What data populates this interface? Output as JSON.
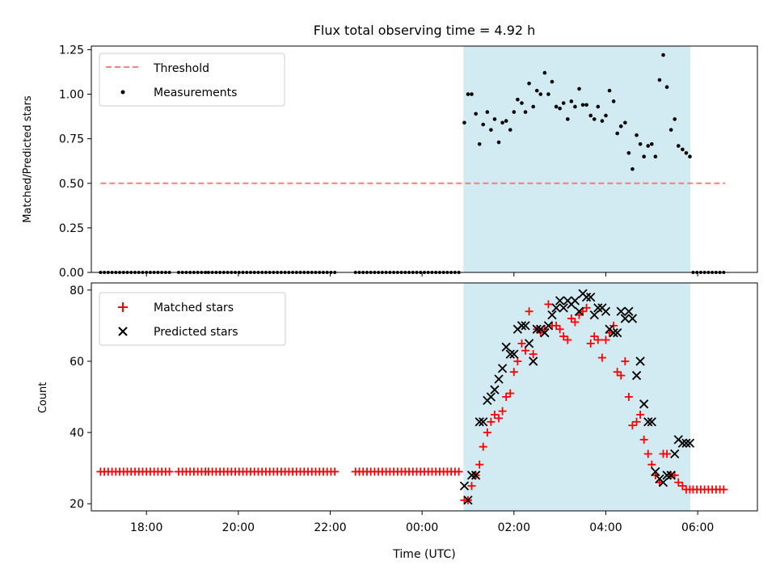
{
  "chart_data": {
    "title": "Flux total observing time = 4.92 h",
    "xlabel": "Time (UTC)",
    "xticks": [
      "18:00",
      "20:00",
      "22:00",
      "00:00",
      "02:00",
      "04:00",
      "06:00"
    ],
    "xlim": [
      16.8,
      31.3
    ],
    "highlight": {
      "x_start": 24.9,
      "x_end": 29.84,
      "color": "#add8e6"
    },
    "panels": [
      {
        "type": "scatter",
        "ylabel": "Matched/Predicted stars",
        "ylim": [
          0,
          1.27
        ],
        "yticks": [
          "0.00",
          "0.25",
          "0.50",
          "0.75",
          "1.00",
          "1.25"
        ],
        "legend": {
          "position": "top-left",
          "entries": [
            {
              "label": "Threshold",
              "style": "dashed-line",
              "color": "#ff8080"
            },
            {
              "label": "Measurements",
              "style": "dot",
              "color": "#000000"
            }
          ]
        },
        "threshold": {
          "value": 0.5,
          "x": [
            17.0,
            30.6
          ],
          "color": "#ff6666"
        },
        "zeros": [
          [
            17.0,
            18.5
          ],
          [
            18.7,
            19.3
          ],
          [
            19.35,
            22.1
          ],
          [
            22.55,
            24.87
          ],
          [
            29.9,
            30.6
          ]
        ],
        "measurements": {
          "x": [
            24.92,
            25.0,
            25.08,
            25.17,
            25.25,
            25.33,
            25.42,
            25.5,
            25.58,
            25.67,
            25.75,
            25.83,
            25.92,
            26.0,
            26.08,
            26.17,
            26.25,
            26.33,
            26.42,
            26.5,
            26.58,
            26.67,
            26.75,
            26.83,
            26.92,
            27.0,
            27.08,
            27.17,
            27.25,
            27.33,
            27.42,
            27.5,
            27.58,
            27.67,
            27.75,
            27.83,
            27.92,
            28.0,
            28.08,
            28.17,
            28.25,
            28.33,
            28.42,
            28.5,
            28.58,
            28.67,
            28.75,
            28.83,
            28.92,
            29.0,
            29.08,
            29.17,
            29.25,
            29.33,
            29.42,
            29.5,
            29.58,
            29.67,
            29.75,
            29.83
          ],
          "y": [
            0.84,
            1.0,
            1.0,
            0.89,
            0.72,
            0.83,
            0.9,
            0.8,
            0.86,
            0.73,
            0.84,
            0.85,
            0.8,
            0.9,
            0.97,
            0.95,
            0.9,
            1.06,
            0.93,
            1.02,
            1.0,
            1.12,
            1.0,
            1.07,
            0.93,
            0.92,
            0.95,
            0.86,
            0.96,
            0.93,
            1.03,
            0.94,
            0.94,
            0.88,
            0.86,
            0.93,
            0.85,
            0.88,
            1.02,
            0.96,
            0.78,
            0.82,
            0.84,
            0.67,
            0.58,
            0.77,
            0.72,
            0.65,
            0.71,
            0.72,
            0.65,
            1.08,
            1.22,
            1.04,
            0.8,
            0.86,
            0.71,
            0.69,
            0.67,
            0.65
          ]
        }
      },
      {
        "type": "scatter",
        "ylabel": "Count",
        "ylim": [
          18,
          82
        ],
        "yticks": [
          "20",
          "40",
          "60",
          "80"
        ],
        "legend": {
          "position": "top-left",
          "entries": [
            {
              "label": "Matched stars",
              "style": "plus",
              "color": "#ff0000"
            },
            {
              "label": "Predicted stars",
              "style": "x",
              "color": "#000000"
            }
          ]
        },
        "baseline_matched": [
          {
            "range": [
              17.0,
              18.5
            ],
            "value": 29
          },
          {
            "range": [
              18.7,
              19.3
            ],
            "value": 29
          },
          {
            "range": [
              19.35,
              22.1
            ],
            "value": 29
          },
          {
            "range": [
              22.55,
              24.87
            ],
            "value": 29
          },
          {
            "range": [
              29.9,
              30.6
            ],
            "value": 24
          }
        ],
        "series": [
          {
            "name": "Matched stars",
            "color": "#ff0000",
            "x": [
              24.92,
              25.0,
              25.08,
              25.17,
              25.25,
              25.33,
              25.42,
              25.5,
              25.58,
              25.67,
              25.75,
              25.83,
              25.92,
              26.0,
              26.08,
              26.17,
              26.25,
              26.33,
              26.42,
              26.5,
              26.58,
              26.67,
              26.75,
              26.83,
              26.92,
              27.0,
              27.08,
              27.17,
              27.25,
              27.33,
              27.42,
              27.5,
              27.58,
              27.67,
              27.75,
              27.83,
              27.92,
              28.0,
              28.08,
              28.17,
              28.25,
              28.33,
              28.42,
              28.5,
              28.58,
              28.67,
              28.75,
              28.83,
              28.92,
              29.0,
              29.08,
              29.17,
              29.25,
              29.33,
              29.42,
              29.5,
              29.58,
              29.67,
              29.75,
              29.83
            ],
            "y": [
              21,
              21,
              25,
              28,
              31,
              36,
              40,
              43,
              45,
              44,
              46,
              50,
              51,
              57,
              60,
              65,
              63,
              74,
              62,
              69,
              68,
              69,
              76,
              70,
              70,
              69,
              67,
              66,
              72,
              71,
              73,
              74,
              75,
              65,
              67,
              66,
              61,
              66,
              68,
              70,
              57,
              56,
              60,
              50,
              42,
              43,
              45,
              38,
              34,
              31,
              28,
              26,
              34,
              34,
              28,
              28,
              26,
              25,
              24,
              24
            ]
          },
          {
            "name": "Predicted stars",
            "color": "#000000",
            "x": [
              24.92,
              25.0,
              25.08,
              25.17,
              25.25,
              25.33,
              25.42,
              25.5,
              25.58,
              25.67,
              25.75,
              25.83,
              25.92,
              26.0,
              26.08,
              26.17,
              26.25,
              26.33,
              26.42,
              26.5,
              26.58,
              26.67,
              26.75,
              26.83,
              26.92,
              27.0,
              27.08,
              27.17,
              27.25,
              27.33,
              27.42,
              27.5,
              27.58,
              27.67,
              27.75,
              27.83,
              27.92,
              28.0,
              28.08,
              28.17,
              28.25,
              28.33,
              28.42,
              28.5,
              28.58,
              28.67,
              28.75,
              28.83,
              28.92,
              29.0,
              29.08,
              29.17,
              29.25,
              29.33,
              29.42,
              29.5,
              29.58,
              29.67,
              29.75,
              29.83
            ],
            "y": [
              25,
              21,
              28,
              28,
              43,
              43,
              49,
              50,
              52,
              55,
              58,
              64,
              62,
              62,
              69,
              70,
              70,
              65,
              60,
              69,
              69,
              68,
              70,
              73,
              75,
              77,
              75,
              77,
              76,
              77,
              74,
              79,
              78,
              78,
              73,
              75,
              75,
              74,
              69,
              68,
              68,
              74,
              72,
              74,
              72,
              56,
              60,
              48,
              43,
              43,
              29,
              27,
              26,
              28,
              28,
              34,
              38,
              37,
              37,
              37
            ]
          }
        ]
      }
    ]
  }
}
